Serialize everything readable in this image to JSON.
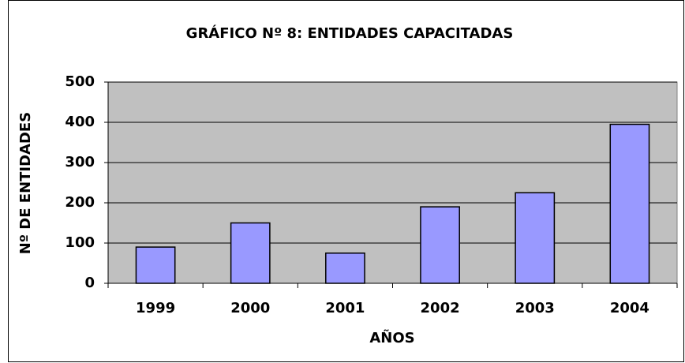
{
  "chart_data": {
    "type": "bar",
    "title": "GRÁFICO Nº 8: ENTIDADES CAPACITADAS",
    "xlabel": "AÑOS",
    "ylabel": "Nº DE ENTIDADES",
    "categories": [
      "1999",
      "2000",
      "2001",
      "2002",
      "2003",
      "2004"
    ],
    "values": [
      90,
      150,
      75,
      190,
      225,
      395
    ],
    "color": "#9999ff",
    "ylim": [
      0,
      500
    ],
    "yticks": [
      0,
      100,
      200,
      300,
      400,
      500
    ],
    "grid": true
  }
}
